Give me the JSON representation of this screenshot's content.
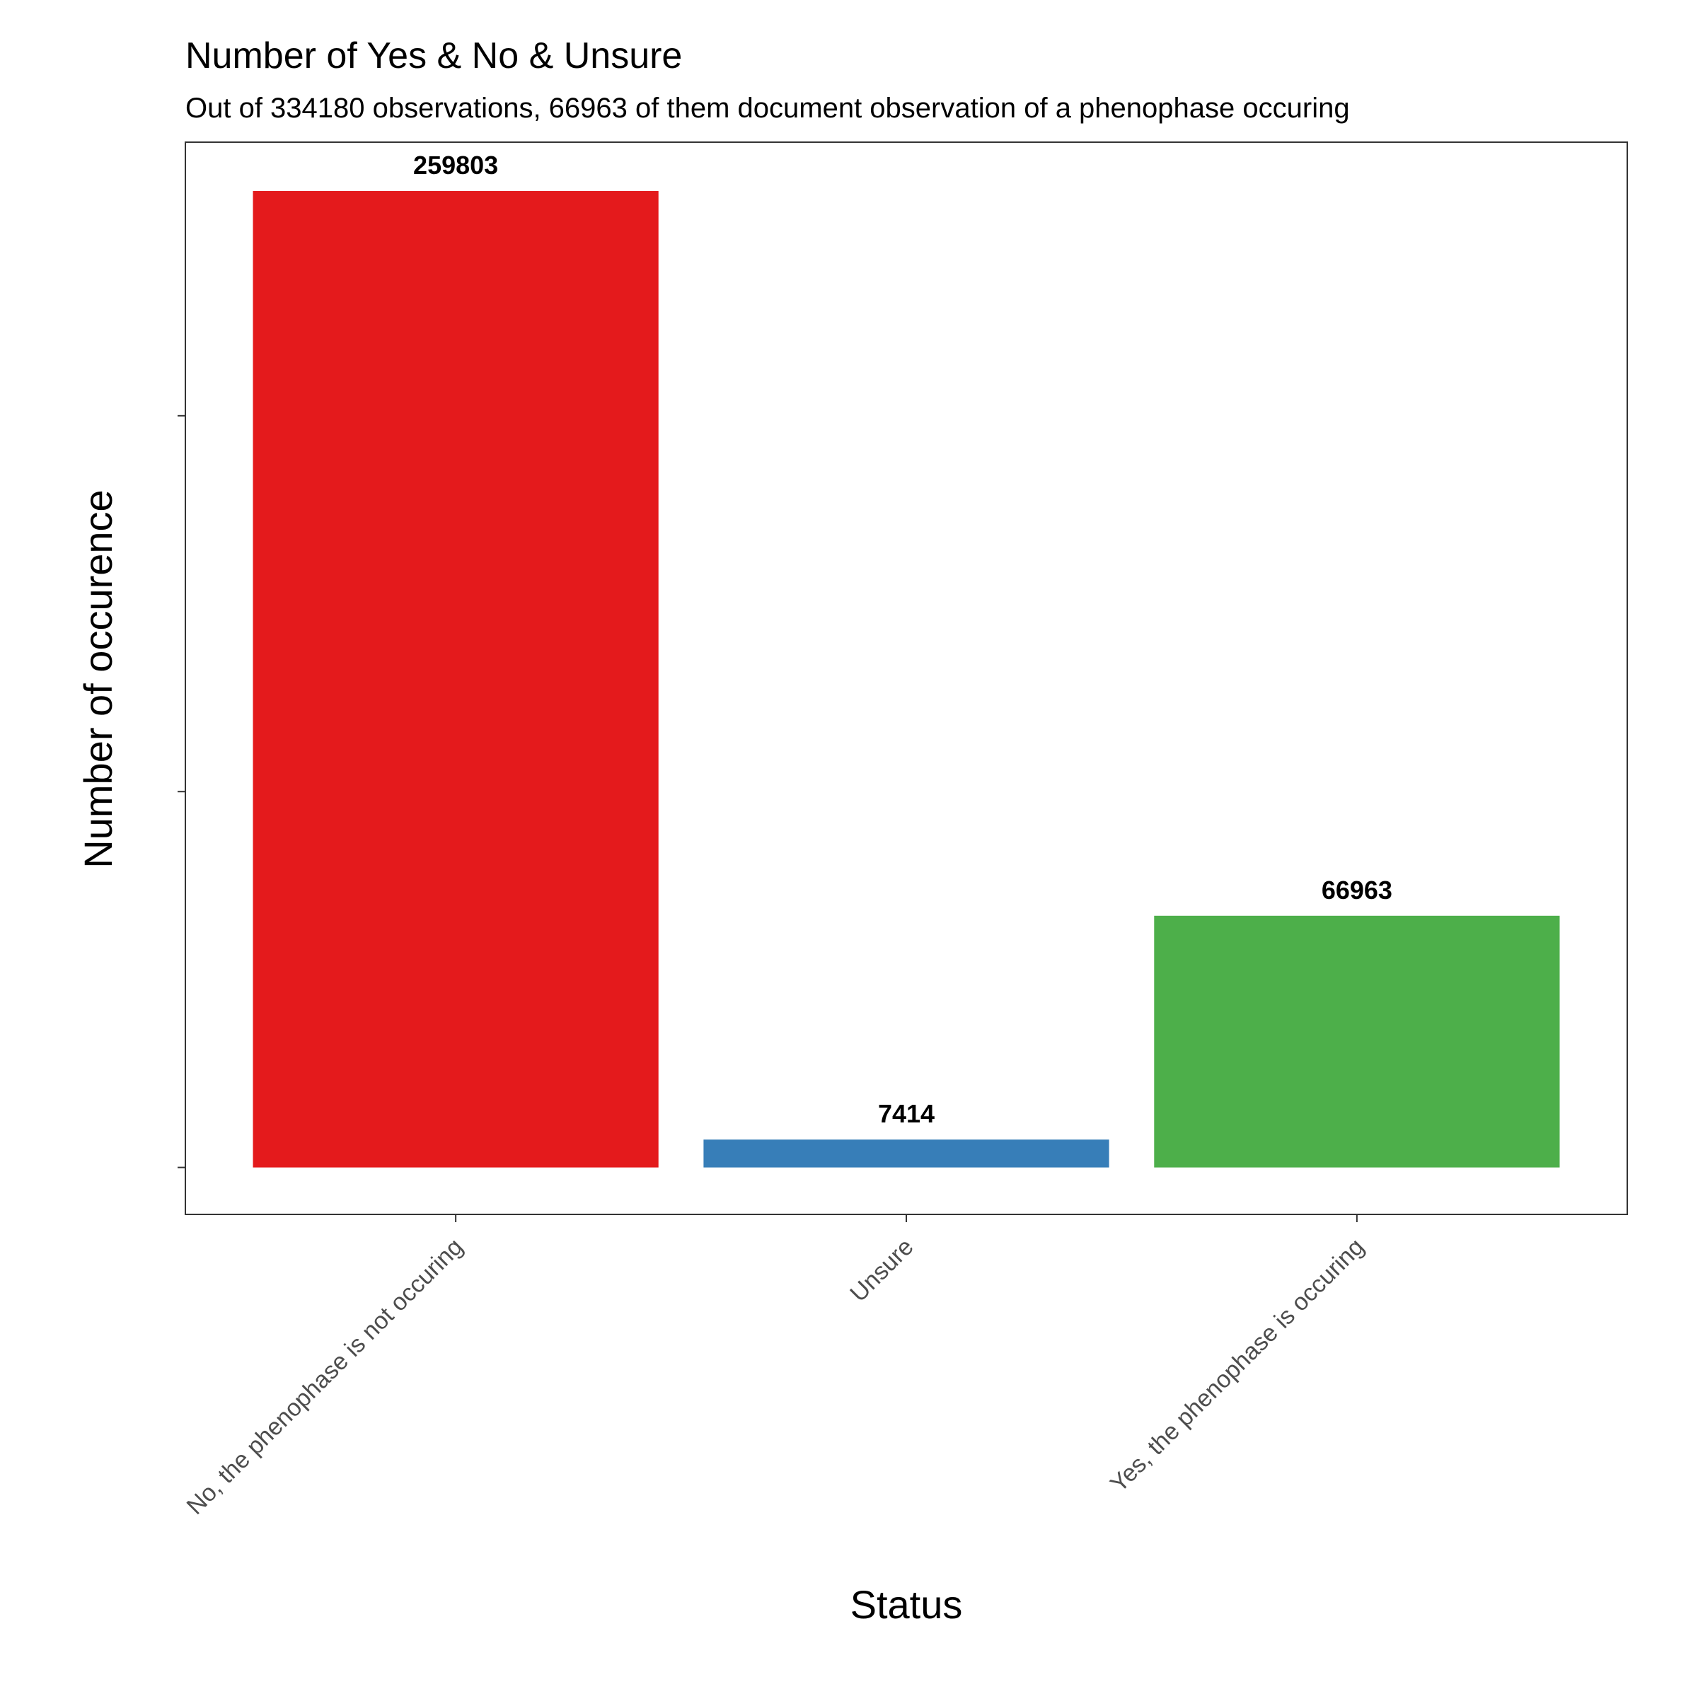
{
  "chart_data": {
    "type": "bar",
    "title": "Number of Yes & No & Unsure",
    "subtitle": "Out of 334180 observations, 66963 of them document observation of a phenophase occuring",
    "xlabel": "Status",
    "ylabel": "Number of occurence",
    "categories": [
      "No, the phenophase is not occuring",
      "Unsure",
      "Yes, the phenophase is occuring"
    ],
    "values": [
      259803,
      7414,
      66963
    ],
    "data_labels": [
      "259803",
      "7414",
      "66963"
    ],
    "colors": [
      "#e41a1c",
      "#377eb8",
      "#4daf4a"
    ],
    "ylim": [
      -12490,
      272793
    ],
    "y_ticks": [
      0,
      100000,
      200000
    ],
    "y_tick_labels_shown": false,
    "grid": false,
    "legend": "none"
  }
}
